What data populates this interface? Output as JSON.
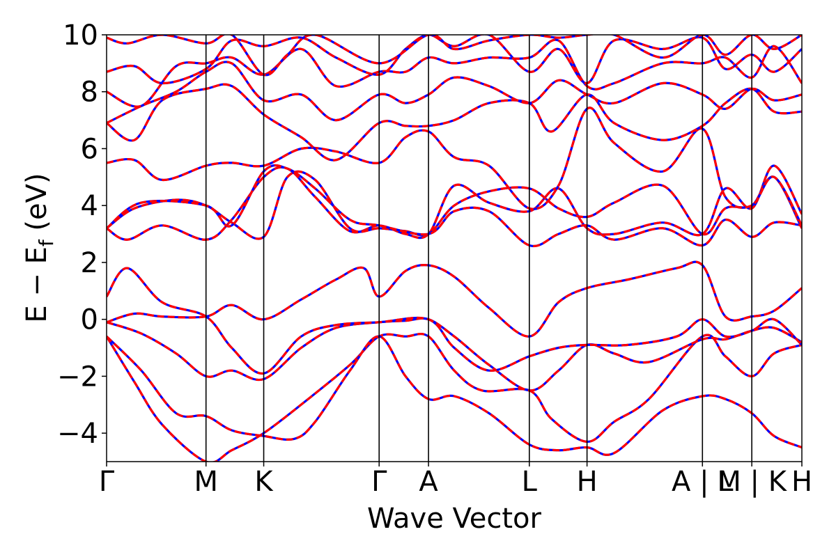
{
  "chart_data": {
    "type": "line",
    "title": "",
    "xlabel": "Wave Vector",
    "ylabel": "E − E_f (eV)",
    "ylabel_main": "E − E",
    "ylabel_sub": "f",
    "ylabel_unit": " (eV)",
    "ylim": [
      -5,
      10
    ],
    "xlim": [
      0,
      1
    ],
    "yticks": [
      -4,
      -2,
      0,
      2,
      4,
      6,
      8,
      10
    ],
    "ytick_labels": [
      "−4",
      "−2",
      "0",
      "2",
      "4",
      "6",
      "8",
      "10"
    ],
    "high_symmetry_points": [
      {
        "label": "Γ",
        "x": 0.0
      },
      {
        "label": "M",
        "x": 0.143
      },
      {
        "label": "K",
        "x": 0.226
      },
      {
        "label": "Γ",
        "x": 0.392
      },
      {
        "label": "A",
        "x": 0.463
      },
      {
        "label": "L",
        "x": 0.608
      },
      {
        "label": "H",
        "x": 0.691
      },
      {
        "label": "A | L",
        "x": 0.857
      },
      {
        "label": "M | K",
        "x": 0.928
      },
      {
        "label": "H",
        "x": 1.0
      }
    ],
    "series_styles": [
      {
        "color": "#0000ff",
        "dash": "solid"
      },
      {
        "color": "#ff0000",
        "dash": "dashed"
      }
    ],
    "bands": [
      [
        [
          0.0,
          -0.6
        ],
        [
          0.04,
          -2.2
        ],
        [
          0.08,
          -3.7
        ],
        [
          0.143,
          -5.0
        ],
        [
          0.18,
          -4.6
        ],
        [
          0.226,
          -4.0
        ],
        [
          0.29,
          -2.8
        ],
        [
          0.35,
          -1.6
        ],
        [
          0.392,
          -0.6
        ],
        [
          0.43,
          -0.6
        ],
        [
          0.463,
          -0.6
        ],
        [
          0.5,
          -1.8
        ],
        [
          0.54,
          -2.5
        ],
        [
          0.608,
          -2.5
        ],
        [
          0.64,
          -3.5
        ],
        [
          0.691,
          -4.3
        ],
        [
          0.73,
          -3.6
        ],
        [
          0.78,
          -2.8
        ],
        [
          0.857,
          -0.6
        ],
        [
          0.89,
          -1.3
        ],
        [
          0.928,
          -2.0
        ],
        [
          0.96,
          -1.2
        ],
        [
          1.0,
          -0.9
        ]
      ],
      [
        [
          0.0,
          -0.6
        ],
        [
          0.05,
          -1.8
        ],
        [
          0.1,
          -3.3
        ],
        [
          0.143,
          -3.4
        ],
        [
          0.18,
          -3.9
        ],
        [
          0.226,
          -4.1
        ],
        [
          0.27,
          -4.2
        ],
        [
          0.3,
          -3.6
        ],
        [
          0.35,
          -1.8
        ],
        [
          0.392,
          -0.6
        ],
        [
          0.43,
          -2.0
        ],
        [
          0.463,
          -2.8
        ],
        [
          0.5,
          -2.7
        ],
        [
          0.55,
          -3.3
        ],
        [
          0.608,
          -4.4
        ],
        [
          0.65,
          -4.6
        ],
        [
          0.691,
          -4.5
        ],
        [
          0.73,
          -4.7
        ],
        [
          0.8,
          -3.2
        ],
        [
          0.857,
          -2.7
        ],
        [
          0.89,
          -2.8
        ],
        [
          0.928,
          -3.3
        ],
        [
          0.96,
          -4.1
        ],
        [
          1.0,
          -4.5
        ]
      ],
      [
        [
          0.0,
          -0.1
        ],
        [
          0.05,
          -0.5
        ],
        [
          0.1,
          -1.2
        ],
        [
          0.143,
          -2.0
        ],
        [
          0.18,
          -1.8
        ],
        [
          0.226,
          -2.1
        ],
        [
          0.28,
          -1.0
        ],
        [
          0.33,
          -0.3
        ],
        [
          0.392,
          -0.1
        ],
        [
          0.43,
          -0.05
        ],
        [
          0.463,
          0.0
        ],
        [
          0.5,
          -0.6
        ],
        [
          0.55,
          -1.6
        ],
        [
          0.608,
          -2.5
        ],
        [
          0.65,
          -1.8
        ],
        [
          0.691,
          -0.9
        ],
        [
          0.73,
          -1.2
        ],
        [
          0.78,
          -1.5
        ],
        [
          0.857,
          -0.7
        ],
        [
          0.89,
          -0.7
        ],
        [
          0.928,
          -0.4
        ],
        [
          0.96,
          -0.3
        ],
        [
          1.0,
          -0.8
        ]
      ],
      [
        [
          0.0,
          -0.1
        ],
        [
          0.04,
          0.2
        ],
        [
          0.08,
          0.1
        ],
        [
          0.143,
          0.1
        ],
        [
          0.18,
          0.5
        ],
        [
          0.226,
          0.0
        ],
        [
          0.28,
          0.7
        ],
        [
          0.33,
          1.4
        ],
        [
          0.37,
          1.8
        ],
        [
          0.392,
          0.8
        ],
        [
          0.43,
          1.7
        ],
        [
          0.463,
          1.9
        ],
        [
          0.5,
          1.5
        ],
        [
          0.55,
          0.4
        ],
        [
          0.608,
          -0.6
        ],
        [
          0.65,
          0.6
        ],
        [
          0.691,
          1.1
        ],
        [
          0.75,
          1.4
        ],
        [
          0.82,
          1.8
        ],
        [
          0.857,
          1.9
        ],
        [
          0.89,
          0.1
        ],
        [
          0.928,
          0.1
        ],
        [
          0.96,
          0.3
        ],
        [
          1.0,
          1.1
        ]
      ],
      [
        [
          0.0,
          0.8
        ],
        [
          0.03,
          1.8
        ],
        [
          0.08,
          0.6
        ],
        [
          0.143,
          0.1
        ],
        [
          0.18,
          -1.0
        ],
        [
          0.226,
          -1.9
        ],
        [
          0.28,
          -0.6
        ],
        [
          0.33,
          -0.2
        ],
        [
          0.392,
          -0.1
        ],
        [
          0.463,
          0.0
        ],
        [
          0.5,
          -1.0
        ],
        [
          0.55,
          -1.8
        ],
        [
          0.608,
          -1.3
        ],
        [
          0.65,
          -1.0
        ],
        [
          0.691,
          -0.9
        ],
        [
          0.75,
          -0.9
        ],
        [
          0.82,
          -0.6
        ],
        [
          0.857,
          0.0
        ],
        [
          0.89,
          -0.6
        ],
        [
          0.928,
          -0.4
        ],
        [
          0.96,
          0.0
        ],
        [
          1.0,
          -0.9
        ]
      ],
      [
        [
          0.0,
          3.2
        ],
        [
          0.03,
          2.8
        ],
        [
          0.08,
          3.3
        ],
        [
          0.143,
          2.8
        ],
        [
          0.18,
          3.5
        ],
        [
          0.226,
          5.0
        ],
        [
          0.26,
          5.3
        ],
        [
          0.3,
          4.3
        ],
        [
          0.35,
          3.1
        ],
        [
          0.392,
          3.3
        ],
        [
          0.43,
          3.0
        ],
        [
          0.463,
          3.0
        ],
        [
          0.5,
          4.7
        ],
        [
          0.55,
          4.1
        ],
        [
          0.608,
          3.8
        ],
        [
          0.65,
          4.6
        ],
        [
          0.691,
          3.2
        ],
        [
          0.73,
          3.0
        ],
        [
          0.8,
          3.4
        ],
        [
          0.857,
          3.0
        ],
        [
          0.89,
          4.6
        ],
        [
          0.928,
          3.9
        ],
        [
          0.96,
          5.4
        ],
        [
          1.0,
          3.7
        ]
      ],
      [
        [
          0.0,
          3.2
        ],
        [
          0.04,
          3.9
        ],
        [
          0.1,
          4.2
        ],
        [
          0.143,
          4.0
        ],
        [
          0.18,
          3.4
        ],
        [
          0.226,
          2.9
        ],
        [
          0.26,
          5.0
        ],
        [
          0.3,
          4.9
        ],
        [
          0.35,
          3.2
        ],
        [
          0.392,
          3.2
        ],
        [
          0.43,
          3.1
        ],
        [
          0.463,
          3.0
        ],
        [
          0.5,
          4.0
        ],
        [
          0.55,
          4.5
        ],
        [
          0.608,
          4.6
        ],
        [
          0.65,
          3.9
        ],
        [
          0.691,
          3.6
        ],
        [
          0.73,
          4.1
        ],
        [
          0.8,
          4.7
        ],
        [
          0.857,
          3.0
        ],
        [
          0.89,
          3.9
        ],
        [
          0.928,
          4.0
        ],
        [
          0.96,
          5.0
        ],
        [
          1.0,
          3.2
        ]
      ],
      [
        [
          0.0,
          3.2
        ],
        [
          0.05,
          4.1
        ],
        [
          0.143,
          4.0
        ],
        [
          0.18,
          3.3
        ],
        [
          0.226,
          5.2
        ],
        [
          0.26,
          5.3
        ],
        [
          0.3,
          4.6
        ],
        [
          0.35,
          3.5
        ],
        [
          0.392,
          3.3
        ],
        [
          0.463,
          3.0
        ],
        [
          0.5,
          3.8
        ],
        [
          0.55,
          3.8
        ],
        [
          0.608,
          2.6
        ],
        [
          0.65,
          3.0
        ],
        [
          0.691,
          3.3
        ],
        [
          0.73,
          2.8
        ],
        [
          0.8,
          3.2
        ],
        [
          0.857,
          2.6
        ],
        [
          0.89,
          3.5
        ],
        [
          0.928,
          2.9
        ],
        [
          0.96,
          3.4
        ],
        [
          1.0,
          3.3
        ]
      ],
      [
        [
          0.0,
          5.5
        ],
        [
          0.04,
          5.6
        ],
        [
          0.08,
          4.9
        ],
        [
          0.143,
          5.4
        ],
        [
          0.18,
          5.5
        ],
        [
          0.226,
          5.4
        ],
        [
          0.28,
          6.0
        ],
        [
          0.33,
          5.9
        ],
        [
          0.392,
          5.5
        ],
        [
          0.43,
          6.4
        ],
        [
          0.463,
          6.6
        ],
        [
          0.5,
          5.7
        ],
        [
          0.55,
          5.4
        ],
        [
          0.608,
          3.9
        ],
        [
          0.65,
          4.7
        ],
        [
          0.691,
          7.4
        ],
        [
          0.73,
          6.2
        ],
        [
          0.8,
          5.2
        ],
        [
          0.857,
          6.7
        ],
        [
          0.89,
          4.3
        ],
        [
          0.928,
          4.0
        ],
        [
          0.96,
          5.0
        ],
        [
          1.0,
          3.3
        ]
      ],
      [
        [
          0.0,
          6.9
        ],
        [
          0.04,
          6.3
        ],
        [
          0.08,
          7.7
        ],
        [
          0.143,
          8.1
        ],
        [
          0.18,
          8.2
        ],
        [
          0.226,
          7.2
        ],
        [
          0.28,
          6.4
        ],
        [
          0.33,
          5.6
        ],
        [
          0.392,
          6.9
        ],
        [
          0.43,
          6.8
        ],
        [
          0.463,
          6.8
        ],
        [
          0.5,
          7.0
        ],
        [
          0.55,
          7.6
        ],
        [
          0.608,
          7.6
        ],
        [
          0.64,
          6.6
        ],
        [
          0.691,
          7.9
        ],
        [
          0.73,
          6.9
        ],
        [
          0.8,
          6.3
        ],
        [
          0.857,
          6.8
        ],
        [
          0.89,
          7.6
        ],
        [
          0.928,
          8.1
        ],
        [
          0.96,
          7.3
        ],
        [
          1.0,
          7.3
        ]
      ],
      [
        [
          0.0,
          6.9
        ],
        [
          0.05,
          7.5
        ],
        [
          0.1,
          8.0
        ],
        [
          0.143,
          8.7
        ],
        [
          0.18,
          9.0
        ],
        [
          0.226,
          7.7
        ],
        [
          0.28,
          7.9
        ],
        [
          0.33,
          7.0
        ],
        [
          0.392,
          7.9
        ],
        [
          0.43,
          7.6
        ],
        [
          0.463,
          7.9
        ],
        [
          0.5,
          8.5
        ],
        [
          0.55,
          8.2
        ],
        [
          0.608,
          7.6
        ],
        [
          0.65,
          8.4
        ],
        [
          0.691,
          7.9
        ],
        [
          0.73,
          7.6
        ],
        [
          0.8,
          8.3
        ],
        [
          0.857,
          7.9
        ],
        [
          0.89,
          7.4
        ],
        [
          0.928,
          8.1
        ],
        [
          0.96,
          7.7
        ],
        [
          1.0,
          7.9
        ]
      ],
      [
        [
          0.0,
          8.0
        ],
        [
          0.05,
          7.5
        ],
        [
          0.1,
          8.9
        ],
        [
          0.143,
          9.0
        ],
        [
          0.18,
          9.2
        ],
        [
          0.226,
          8.6
        ],
        [
          0.28,
          9.5
        ],
        [
          0.33,
          8.2
        ],
        [
          0.392,
          8.7
        ],
        [
          0.43,
          8.7
        ],
        [
          0.463,
          9.2
        ],
        [
          0.5,
          9.0
        ],
        [
          0.55,
          9.2
        ],
        [
          0.608,
          9.2
        ],
        [
          0.65,
          9.8
        ],
        [
          0.691,
          8.2
        ],
        [
          0.73,
          8.3
        ],
        [
          0.8,
          9.0
        ],
        [
          0.857,
          9.0
        ],
        [
          0.89,
          9.2
        ],
        [
          0.928,
          8.5
        ],
        [
          0.96,
          9.6
        ],
        [
          1.0,
          8.3
        ]
      ],
      [
        [
          0.0,
          8.7
        ],
        [
          0.04,
          8.9
        ],
        [
          0.08,
          8.3
        ],
        [
          0.143,
          8.8
        ],
        [
          0.18,
          9.8
        ],
        [
          0.226,
          9.6
        ],
        [
          0.28,
          9.9
        ],
        [
          0.33,
          9.2
        ],
        [
          0.392,
          8.6
        ],
        [
          0.43,
          9.5
        ],
        [
          0.463,
          10.0
        ],
        [
          0.5,
          9.6
        ],
        [
          0.55,
          10.0
        ],
        [
          0.608,
          8.7
        ],
        [
          0.65,
          9.5
        ],
        [
          0.691,
          8.3
        ],
        [
          0.73,
          9.8
        ],
        [
          0.8,
          9.5
        ],
        [
          0.857,
          9.9
        ],
        [
          0.89,
          8.8
        ],
        [
          0.928,
          9.3
        ],
        [
          0.96,
          8.7
        ],
        [
          1.0,
          9.5
        ]
      ],
      [
        [
          0.0,
          9.9
        ],
        [
          0.03,
          9.7
        ],
        [
          0.08,
          10.0
        ],
        [
          0.143,
          9.7
        ],
        [
          0.18,
          10.0
        ],
        [
          0.226,
          8.6
        ],
        [
          0.26,
          9.3
        ],
        [
          0.3,
          10.0
        ],
        [
          0.392,
          9.0
        ],
        [
          0.463,
          10.0
        ],
        [
          0.5,
          9.5
        ],
        [
          0.55,
          9.8
        ],
        [
          0.608,
          10.0
        ],
        [
          0.65,
          9.9
        ],
        [
          0.691,
          10.0
        ],
        [
          0.73,
          10.0
        ],
        [
          0.8,
          9.2
        ],
        [
          0.857,
          10.0
        ],
        [
          0.89,
          9.3
        ],
        [
          0.928,
          10.0
        ],
        [
          0.96,
          9.5
        ],
        [
          1.0,
          10.0
        ]
      ]
    ]
  }
}
